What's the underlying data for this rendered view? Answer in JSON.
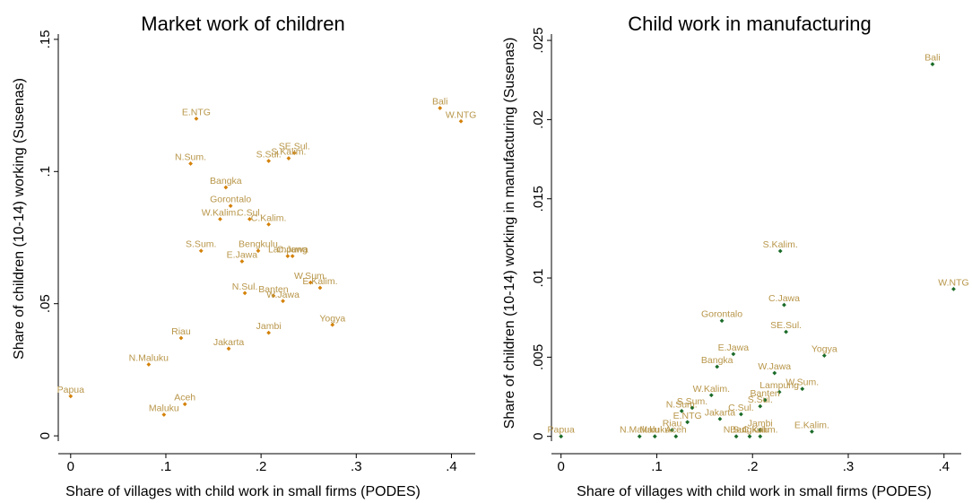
{
  "colors": {
    "left_markers": "#d4820a",
    "left_labels": "#b8964a",
    "right_markers": "#1a6b28",
    "right_labels": "#b8964a",
    "axis": "#000000"
  },
  "chart_data": [
    {
      "type": "scatter",
      "title": "Market work of children",
      "xlabel": "Share of villages with child work in small firms (PODES)",
      "ylabel": "Share of children (10-14) working (Susenas)",
      "xlim": [
        -0.013,
        0.425
      ],
      "ylim": [
        -0.002,
        0.152
      ],
      "x_ticks": [
        {
          "value": 0,
          "label": "0"
        },
        {
          "value": 0.1,
          "label": ".1"
        },
        {
          "value": 0.2,
          "label": ".2"
        },
        {
          "value": 0.3,
          "label": ".3"
        },
        {
          "value": 0.4,
          "label": ".4"
        }
      ],
      "y_ticks": [
        {
          "value": 0,
          "label": "0"
        },
        {
          "value": 0.05,
          "label": ".05"
        },
        {
          "value": 0.1,
          "label": ".1"
        },
        {
          "value": 0.15,
          "label": ".15"
        }
      ],
      "grid": false,
      "points": [
        {
          "label": "Bali",
          "x": 0.388,
          "y": 0.124
        },
        {
          "label": "W.NTG",
          "x": 0.41,
          "y": 0.119
        },
        {
          "label": "E.NTG",
          "x": 0.132,
          "y": 0.12
        },
        {
          "label": "N.Sum.",
          "x": 0.126,
          "y": 0.103
        },
        {
          "label": "SE.Sul.",
          "x": 0.235,
          "y": 0.107
        },
        {
          "label": "S.Kalim.",
          "x": 0.229,
          "y": 0.105
        },
        {
          "label": "S.Sul.",
          "x": 0.208,
          "y": 0.104
        },
        {
          "label": "Bangka",
          "x": 0.163,
          "y": 0.094
        },
        {
          "label": "Gorontalo",
          "x": 0.168,
          "y": 0.087
        },
        {
          "label": "W.Kalim.",
          "x": 0.157,
          "y": 0.082
        },
        {
          "label": "C.Sul.",
          "x": 0.188,
          "y": 0.082
        },
        {
          "label": "C.Kalim.",
          "x": 0.208,
          "y": 0.08
        },
        {
          "label": "S.Sum.",
          "x": 0.137,
          "y": 0.07
        },
        {
          "label": "Bengkulu",
          "x": 0.197,
          "y": 0.07
        },
        {
          "label": "Lampung",
          "x": 0.228,
          "y": 0.068
        },
        {
          "label": "C.Jawa",
          "x": 0.233,
          "y": 0.068
        },
        {
          "label": "E.Jawa",
          "x": 0.18,
          "y": 0.066
        },
        {
          "label": "W.Sum.",
          "x": 0.252,
          "y": 0.058
        },
        {
          "label": "E.Kalim.",
          "x": 0.262,
          "y": 0.056
        },
        {
          "label": "N.Sul.",
          "x": 0.183,
          "y": 0.054
        },
        {
          "label": "Banten",
          "x": 0.213,
          "y": 0.053
        },
        {
          "label": "W.Jawa",
          "x": 0.223,
          "y": 0.051
        },
        {
          "label": "Yogya",
          "x": 0.275,
          "y": 0.042
        },
        {
          "label": "Jambi",
          "x": 0.208,
          "y": 0.039
        },
        {
          "label": "Riau",
          "x": 0.116,
          "y": 0.037
        },
        {
          "label": "Jakarta",
          "x": 0.166,
          "y": 0.033
        },
        {
          "label": "N.Maluku",
          "x": 0.082,
          "y": 0.027
        },
        {
          "label": "Papua",
          "x": 0.0,
          "y": 0.015
        },
        {
          "label": "Aceh",
          "x": 0.12,
          "y": 0.012
        },
        {
          "label": "Maluku",
          "x": 0.098,
          "y": 0.008
        }
      ]
    },
    {
      "type": "scatter",
      "title": "Child work in manufacturing",
      "xlabel": "Share of villages with child work in small firms (PODES)",
      "ylabel": "Share of children (10-14) working in manufacturing (Susenas)",
      "xlim": [
        -0.01,
        0.418
      ],
      "ylim": [
        -0.0003,
        0.0254
      ],
      "x_ticks": [
        {
          "value": 0,
          "label": "0"
        },
        {
          "value": 0.1,
          "label": ".1"
        },
        {
          "value": 0.2,
          "label": ".2"
        },
        {
          "value": 0.3,
          "label": ".3"
        },
        {
          "value": 0.4,
          "label": ".4"
        }
      ],
      "y_ticks": [
        {
          "value": 0,
          "label": "0"
        },
        {
          "value": 0.005,
          "label": ".005"
        },
        {
          "value": 0.01,
          "label": ".01"
        },
        {
          "value": 0.015,
          "label": ".015"
        },
        {
          "value": 0.02,
          "label": ".02"
        },
        {
          "value": 0.025,
          "label": ".025"
        }
      ],
      "grid": false,
      "points": [
        {
          "label": "Bali",
          "x": 0.388,
          "y": 0.0235
        },
        {
          "label": "S.Kalim.",
          "x": 0.229,
          "y": 0.0117
        },
        {
          "label": "W.NTG",
          "x": 0.41,
          "y": 0.0093
        },
        {
          "label": "C.Jawa",
          "x": 0.233,
          "y": 0.0083
        },
        {
          "label": "Gorontalo",
          "x": 0.168,
          "y": 0.0073
        },
        {
          "label": "SE.Sul.",
          "x": 0.235,
          "y": 0.0066
        },
        {
          "label": "E.Jawa",
          "x": 0.18,
          "y": 0.0052
        },
        {
          "label": "Yogya",
          "x": 0.275,
          "y": 0.0051
        },
        {
          "label": "Bangka",
          "x": 0.163,
          "y": 0.0044
        },
        {
          "label": "W.Jawa",
          "x": 0.223,
          "y": 0.004
        },
        {
          "label": "W.Sum.",
          "x": 0.252,
          "y": 0.003
        },
        {
          "label": "Lampung",
          "x": 0.228,
          "y": 0.0028
        },
        {
          "label": "W.Kalim.",
          "x": 0.157,
          "y": 0.0026
        },
        {
          "label": "Banten",
          "x": 0.213,
          "y": 0.0023
        },
        {
          "label": "S.Sul.",
          "x": 0.208,
          "y": 0.0019
        },
        {
          "label": "C.Sul.",
          "x": 0.188,
          "y": 0.0014
        },
        {
          "label": "S.Sum.",
          "x": 0.137,
          "y": 0.0018
        },
        {
          "label": "N.Sum.",
          "x": 0.126,
          "y": 0.0016
        },
        {
          "label": "Jakarta",
          "x": 0.166,
          "y": 0.0011
        },
        {
          "label": "E.NTG",
          "x": 0.132,
          "y": 0.0009
        },
        {
          "label": "Jambi",
          "x": 0.208,
          "y": 0.0004
        },
        {
          "label": "Riau",
          "x": 0.116,
          "y": 0.0004
        },
        {
          "label": "E.Kalim.",
          "x": 0.262,
          "y": 0.0003
        },
        {
          "label": "Papua",
          "x": 0.0,
          "y": 0.0
        },
        {
          "label": "N.Maluku",
          "x": 0.082,
          "y": 0.0
        },
        {
          "label": "Maluku",
          "x": 0.098,
          "y": 0.0
        },
        {
          "label": "Aceh",
          "x": 0.12,
          "y": 0.0
        },
        {
          "label": "N.Sul.",
          "x": 0.183,
          "y": 0.0
        },
        {
          "label": "Bengkulu",
          "x": 0.197,
          "y": 0.0
        },
        {
          "label": "C.Kalim.",
          "x": 0.208,
          "y": 0.0
        }
      ]
    }
  ]
}
